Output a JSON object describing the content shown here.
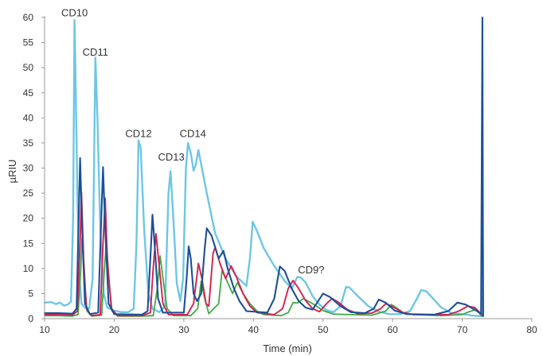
{
  "chart_data": {
    "type": "line",
    "xlabel": "Time (min)",
    "ylabel": "µRIU",
    "xlim": [
      10,
      80
    ],
    "ylim": [
      0,
      60
    ],
    "x_ticks": [
      "10",
      "20",
      "30",
      "40",
      "50",
      "60",
      "70",
      "80"
    ],
    "y_ticks": [
      "0",
      "5",
      "10",
      "15",
      "20",
      "25",
      "30",
      "35",
      "40",
      "45",
      "50",
      "55",
      "60"
    ],
    "grid": false,
    "legend": "none",
    "annotations": [
      {
        "text": "CD10",
        "x": 14.3,
        "y": 60.2
      },
      {
        "text": "CD11",
        "x": 17.3,
        "y": 52.4
      },
      {
        "text": "CD12",
        "x": 23.5,
        "y": 36.2
      },
      {
        "text": "CD13",
        "x": 28.2,
        "y": 31.5
      },
      {
        "text": "CD14",
        "x": 31.3,
        "y": 36.2
      },
      {
        "text": "CD9?",
        "x": 48.3,
        "y": 9.0
      }
    ],
    "series": [
      {
        "color": "#6ec6e6",
        "width": 2.4,
        "points": [
          [
            10,
            3.2
          ],
          [
            11,
            3.3
          ],
          [
            11.6,
            2.9
          ],
          [
            12.2,
            3.2
          ],
          [
            12.8,
            2.6
          ],
          [
            13.3,
            2.8
          ],
          [
            13.8,
            3.4
          ],
          [
            14.1,
            20
          ],
          [
            14.3,
            59.5
          ],
          [
            14.6,
            35
          ],
          [
            14.9,
            10
          ],
          [
            15.3,
            3.0
          ],
          [
            15.8,
            2.2
          ],
          [
            16.4,
            2.0
          ],
          [
            16.9,
            8
          ],
          [
            17.3,
            52
          ],
          [
            17.6,
            40
          ],
          [
            18,
            18
          ],
          [
            18.5,
            5
          ],
          [
            19,
            2.2
          ],
          [
            20,
            1.6
          ],
          [
            21,
            1.3
          ],
          [
            22,
            1.3
          ],
          [
            22.8,
            2
          ],
          [
            23.2,
            15
          ],
          [
            23.5,
            35.5
          ],
          [
            23.8,
            34
          ],
          [
            24.3,
            18
          ],
          [
            24.9,
            5
          ],
          [
            25.5,
            2
          ],
          [
            26.5,
            1.3
          ],
          [
            27.3,
            2.5
          ],
          [
            27.8,
            25
          ],
          [
            28.1,
            29.4
          ],
          [
            28.5,
            20
          ],
          [
            29,
            7
          ],
          [
            29.5,
            3.5
          ],
          [
            29.9,
            8
          ],
          [
            30.3,
            30
          ],
          [
            30.6,
            35
          ],
          [
            31,
            33
          ],
          [
            31.4,
            29.5
          ],
          [
            31.7,
            30.5
          ],
          [
            32.1,
            33.6
          ],
          [
            32.6,
            30
          ],
          [
            33.3,
            25
          ],
          [
            34.5,
            17
          ],
          [
            36,
            12
          ],
          [
            37.5,
            8.5
          ],
          [
            39,
            6.5
          ],
          [
            39.5,
            12
          ],
          [
            39.9,
            19.3
          ],
          [
            40.5,
            17.5
          ],
          [
            41.5,
            14
          ],
          [
            43,
            10.5
          ],
          [
            44.5,
            7.5
          ],
          [
            45.5,
            6
          ],
          [
            46.3,
            8.3
          ],
          [
            46.8,
            8.2
          ],
          [
            47.5,
            7.2
          ],
          [
            48.5,
            4.5
          ],
          [
            49.5,
            2.8
          ],
          [
            50.5,
            1.7
          ],
          [
            51.5,
            1.3
          ],
          [
            52.5,
            2.5
          ],
          [
            53.3,
            6.3
          ],
          [
            53.8,
            6.2
          ],
          [
            55,
            4.5
          ],
          [
            56.5,
            2.5
          ],
          [
            58,
            1.4
          ],
          [
            59.5,
            0.9
          ],
          [
            61,
            0.9
          ],
          [
            62.5,
            1.5
          ],
          [
            63.5,
            4
          ],
          [
            64.1,
            5.7
          ],
          [
            64.8,
            5.5
          ],
          [
            65.8,
            4
          ],
          [
            67,
            2.2
          ],
          [
            68.5,
            1.1
          ],
          [
            70,
            0.9
          ],
          [
            71.5,
            0.6
          ],
          [
            72.8,
            0.5
          ],
          [
            72.9,
            29
          ],
          [
            73,
            0.5
          ]
        ]
      },
      {
        "color": "#3faa46",
        "width": 1.8,
        "points": [
          [
            10,
            0.6
          ],
          [
            12,
            0.6
          ],
          [
            14,
            0.5
          ],
          [
            14.8,
            0.8
          ],
          [
            15.2,
            10
          ],
          [
            15.4,
            16.2
          ],
          [
            15.7,
            8
          ],
          [
            16.1,
            1.5
          ],
          [
            16.8,
            0.5
          ],
          [
            18.2,
            0.7
          ],
          [
            18.6,
            10
          ],
          [
            18.9,
            15.8
          ],
          [
            19.2,
            8
          ],
          [
            19.7,
            1.5
          ],
          [
            20.5,
            0.5
          ],
          [
            24,
            0.5
          ],
          [
            25.6,
            0.6
          ],
          [
            26.2,
            6
          ],
          [
            26.6,
            12.5
          ],
          [
            27.1,
            7
          ],
          [
            27.6,
            2
          ],
          [
            28.5,
            0.6
          ],
          [
            31,
            0.6
          ],
          [
            32,
            2
          ],
          [
            32.5,
            7.5
          ],
          [
            33,
            4
          ],
          [
            33.6,
            1
          ],
          [
            35,
            3
          ],
          [
            35.5,
            9.6
          ],
          [
            36.2,
            7.5
          ],
          [
            37,
            5
          ],
          [
            37.7,
            7.2
          ],
          [
            38.5,
            5
          ],
          [
            39.5,
            3
          ],
          [
            40.5,
            1.5
          ],
          [
            41.5,
            0.8
          ],
          [
            44,
            0.6
          ],
          [
            45,
            1.2
          ],
          [
            45.7,
            3.2
          ],
          [
            46.3,
            3.1
          ],
          [
            47.2,
            4
          ],
          [
            48.5,
            3
          ],
          [
            50,
            1.6
          ],
          [
            51.5,
            0.9
          ],
          [
            54,
            0.8
          ],
          [
            57,
            0.7
          ],
          [
            59,
            1.5
          ],
          [
            59.8,
            2.8
          ],
          [
            60.5,
            2.2
          ],
          [
            61.5,
            1.2
          ],
          [
            63,
            0.8
          ],
          [
            67,
            0.6
          ],
          [
            70,
            0.8
          ],
          [
            71,
            1.4
          ],
          [
            72,
            1.8
          ],
          [
            72.8,
            0.5
          ],
          [
            73,
            0.5
          ]
        ]
      },
      {
        "color": "#d6204f",
        "width": 1.9,
        "points": [
          [
            10,
            0.8
          ],
          [
            12,
            0.8
          ],
          [
            14,
            0.7
          ],
          [
            14.7,
            1.5
          ],
          [
            15.1,
            15
          ],
          [
            15.3,
            25.2
          ],
          [
            15.6,
            12
          ],
          [
            16,
            2
          ],
          [
            16.7,
            0.6
          ],
          [
            18,
            0.8
          ],
          [
            18.4,
            15
          ],
          [
            18.7,
            24
          ],
          [
            19,
            12
          ],
          [
            19.6,
            2
          ],
          [
            20.5,
            0.6
          ],
          [
            24,
            0.6
          ],
          [
            25.2,
            1.2
          ],
          [
            25.6,
            10
          ],
          [
            26,
            16.9
          ],
          [
            26.5,
            10
          ],
          [
            27,
            3
          ],
          [
            27.8,
            0.8
          ],
          [
            30.5,
            0.8
          ],
          [
            31.4,
            3
          ],
          [
            32.1,
            11
          ],
          [
            32.6,
            8
          ],
          [
            33.2,
            3
          ],
          [
            33.6,
            2.5
          ],
          [
            34.2,
            13
          ],
          [
            34.5,
            14.2
          ],
          [
            35.2,
            11
          ],
          [
            36,
            8
          ],
          [
            36.8,
            10.5
          ],
          [
            37.5,
            8.5
          ],
          [
            38.5,
            5
          ],
          [
            39.5,
            2.5
          ],
          [
            40.5,
            1.2
          ],
          [
            43,
            0.8
          ],
          [
            44.2,
            2
          ],
          [
            45,
            6
          ],
          [
            45.7,
            7.6
          ],
          [
            46.5,
            6
          ],
          [
            47.5,
            3.6
          ],
          [
            48.5,
            2
          ],
          [
            49.5,
            1.4
          ],
          [
            50.5,
            3
          ],
          [
            51.3,
            4
          ],
          [
            52.2,
            3.3
          ],
          [
            53.5,
            1.8
          ],
          [
            55,
            1
          ],
          [
            57,
            1.1
          ],
          [
            58.3,
            2
          ],
          [
            59,
            3
          ],
          [
            60,
            2.4
          ],
          [
            61.5,
            1.2
          ],
          [
            63,
            0.8
          ],
          [
            68,
            0.8
          ],
          [
            69.5,
            1.5
          ],
          [
            70.8,
            2.5
          ],
          [
            71.8,
            2.2
          ],
          [
            72.8,
            0.8
          ],
          [
            73,
            0.8
          ]
        ]
      },
      {
        "color": "#1e4f95",
        "width": 2.1,
        "points": [
          [
            10,
            1.1
          ],
          [
            12,
            1.1
          ],
          [
            14,
            1
          ],
          [
            14.6,
            2
          ],
          [
            14.9,
            20
          ],
          [
            15.1,
            32
          ],
          [
            15.4,
            18
          ],
          [
            15.8,
            3
          ],
          [
            16.5,
            0.9
          ],
          [
            17.7,
            1.2
          ],
          [
            18.1,
            18
          ],
          [
            18.4,
            30.2
          ],
          [
            18.7,
            18
          ],
          [
            19.2,
            3
          ],
          [
            20,
            0.9
          ],
          [
            24,
            0.8
          ],
          [
            24.8,
            1.5
          ],
          [
            25.3,
            15
          ],
          [
            25.5,
            20.7
          ],
          [
            25.9,
            13
          ],
          [
            26.3,
            4
          ],
          [
            27,
            1.2
          ],
          [
            30,
            1.2
          ],
          [
            30.4,
            8
          ],
          [
            30.7,
            14.4
          ],
          [
            31,
            12
          ],
          [
            31.4,
            5
          ],
          [
            31.9,
            3.5
          ],
          [
            32.5,
            5
          ],
          [
            33,
            14
          ],
          [
            33.3,
            18
          ],
          [
            34,
            16.5
          ],
          [
            35,
            12
          ],
          [
            35.7,
            13.5
          ],
          [
            36.3,
            10
          ],
          [
            37.2,
            6
          ],
          [
            38,
            3.5
          ],
          [
            39,
            1.5
          ],
          [
            42,
            1.2
          ],
          [
            43,
            4
          ],
          [
            43.8,
            10.4
          ],
          [
            44.5,
            9.5
          ],
          [
            45.5,
            6
          ],
          [
            46.5,
            3.5
          ],
          [
            47.5,
            2.2
          ],
          [
            48.5,
            1.8
          ],
          [
            49.3,
            3.5
          ],
          [
            50,
            5
          ],
          [
            51,
            4.3
          ],
          [
            52.5,
            2.5
          ],
          [
            54,
            1.3
          ],
          [
            56,
            1.1
          ],
          [
            57.3,
            2
          ],
          [
            58,
            3.8
          ],
          [
            59,
            3.2
          ],
          [
            60.3,
            1.6
          ],
          [
            62,
            0.9
          ],
          [
            66,
            0.8
          ],
          [
            68,
            1.5
          ],
          [
            69.3,
            3.2
          ],
          [
            70.5,
            2.8
          ],
          [
            72,
            1.6
          ],
          [
            72.7,
            1
          ],
          [
            72.9,
            60
          ],
          [
            73,
            0.5
          ]
        ]
      }
    ]
  }
}
